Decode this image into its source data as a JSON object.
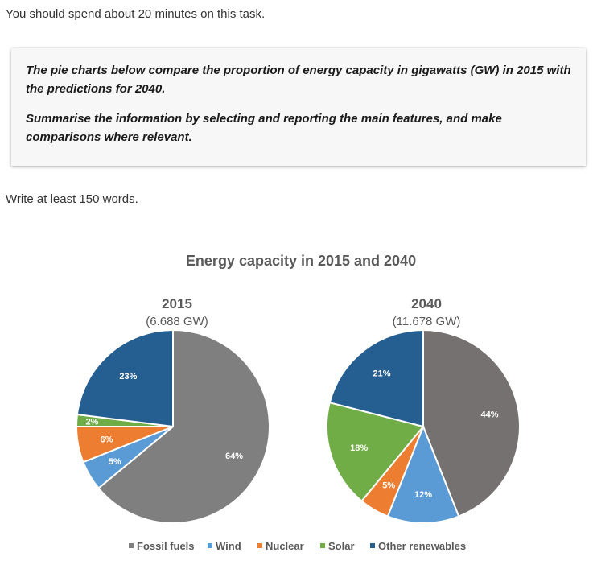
{
  "instruction": "You should spend about 20 minutes on this task.",
  "task": {
    "paragraph1": "The pie charts below compare the proportion of energy capacity in gigawatts (GW) in 2015 with the predictions for 2040.",
    "paragraph2": "Summarise the information by selecting and reporting the main features, and make comparisons where relevant."
  },
  "word_count": "Write at least 150 words.",
  "chart_data": {
    "type": "pie",
    "title": "Energy capacity in 2015 and 2040",
    "categories": [
      "Fossil fuels",
      "Wind",
      "Nuclear",
      "Solar",
      "Other renewables"
    ],
    "colors": [
      "#7f7f7f",
      "#5b9bd5",
      "#ed7d31",
      "#70ad47",
      "#255e91"
    ],
    "legend_position": "bottom",
    "charts": [
      {
        "title": "2015",
        "subtitle": "(6.688 GW)",
        "values": [
          64,
          5,
          6,
          2,
          23
        ],
        "labels": [
          "64%",
          "5%",
          "6%",
          "2%",
          "23%"
        ],
        "colors": [
          "#7f7f7f",
          "#5b9bd5",
          "#ed7d31",
          "#70ad47",
          "#255e91"
        ]
      },
      {
        "title": "2040",
        "subtitle": "(11.678 GW)",
        "values": [
          44,
          12,
          5,
          18,
          21
        ],
        "labels": [
          "44%",
          "12%",
          "5%",
          "18%",
          "21%"
        ],
        "colors": [
          "#767171",
          "#5b9bd5",
          "#ed7d31",
          "#70ad47",
          "#255e91"
        ]
      }
    ]
  }
}
